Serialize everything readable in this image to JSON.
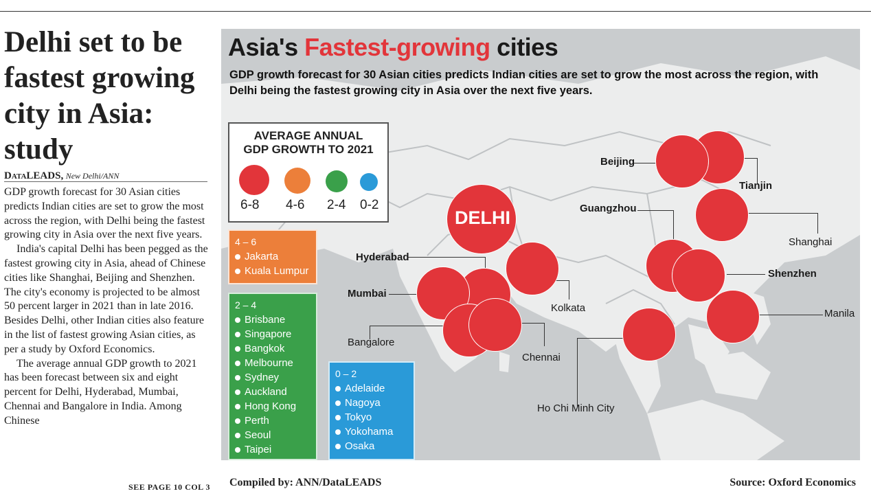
{
  "article": {
    "headline": "Delhi set to be fastest growing city in Asia: study",
    "byline_source": "DataLEADS,",
    "byline_location": "New Delhi/ANN",
    "paragraphs": [
      "GDP growth forecast for 30 Asian cities predicts Indian cities are set to grow the most across the region, with Delhi being the fastest growing city in Asia over the next five years.",
      "India's capital Delhi has been pegged as the fastest growing city in Asia, ahead of Chinese cities like Shanghai, Beijing and Shenzhen. The city's economy is projected to be almost 50 percent larger in 2021 than in late 2016. Besides Delhi, other Indian cities also feature in the list of fastest growing Asian cities, as per a study by Oxford Economics.",
      "The average annual GDP growth to 2021 has been forecast between six and eight percent for Delhi, Hyderabad, Mumbai, Chennai and Bangalore in India. Among Chinese"
    ],
    "see_page": "SEE PAGE 10 COL 3"
  },
  "graphic": {
    "title_prefix": "Asia's",
    "title_highlight": "Fastest-growing",
    "title_suffix": "cities",
    "subtitle": "GDP growth forecast for 30 Asian cities predicts Indian cities are set to grow the most across the region, with Delhi being the fastest growing city in Asia over the next five years.",
    "legend": {
      "title": "AVERAGE ANNUAL GDP GROWTH TO 2021",
      "items": [
        {
          "label": "6-8",
          "color": "#e2353a"
        },
        {
          "label": "4-6",
          "color": "#ec7f3a"
        },
        {
          "label": "2-4",
          "color": "#3aa04a"
        },
        {
          "label": "0-2",
          "color": "#2a9ad8"
        }
      ]
    },
    "groups": [
      {
        "range": "4 – 6",
        "color": "#ec7f3a",
        "cities": [
          "Jakarta",
          "Kuala Lumpur"
        ]
      },
      {
        "range": "2 – 4",
        "color": "#3aa04a",
        "cities": [
          "Brisbane",
          "Singapore",
          "Bangkok",
          "Melbourne",
          "Sydney",
          "Auckland",
          "Hong Kong",
          "Perth",
          "Seoul",
          "Taipei"
        ]
      },
      {
        "range": "0 – 2",
        "color": "#2a9ad8",
        "cities": [
          "Adelaide",
          "Nagoya",
          "Tokyo",
          "Yokohama",
          "Osaka"
        ]
      }
    ],
    "map_labels": {
      "delhi": "DELHI",
      "hyderabad": "Hyderabad",
      "mumbai": "Mumbai",
      "bangalore": "Bangalore",
      "chennai": "Chennai",
      "kolkata": "Kolkata",
      "beijing": "Beijing",
      "tianjin": "Tianjin",
      "guangzhou": "Guangzhou",
      "shanghai": "Shanghai",
      "shenzhen": "Shenzhen",
      "manila": "Manila",
      "hochiminh": "Ho Chi Minh City"
    },
    "compiled_by": "Compiled by: ANN/DataLEADS",
    "source": "Source: Oxford Economics"
  }
}
